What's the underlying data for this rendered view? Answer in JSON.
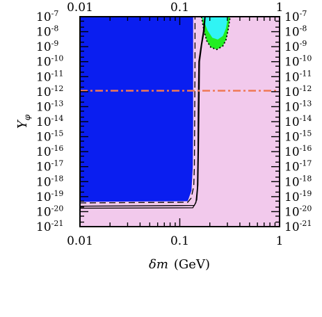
{
  "chart_data": {
    "type": "area",
    "title": "",
    "xlabel": {
      "symbol": "δm",
      "unit": "(GeV)"
    },
    "ylabel": {
      "symbol": "Y",
      "subscript": "φ"
    },
    "x_scale": "log",
    "y_scale": "log",
    "xlim": [
      0.01,
      1
    ],
    "ylim": [
      1e-21,
      1e-07
    ],
    "x_ticks": [
      {
        "value": 0.01,
        "label": "0.01"
      },
      {
        "value": 0.1,
        "label": "0.1"
      },
      {
        "value": 1,
        "label": "1"
      }
    ],
    "y_ticks": [
      {
        "exp": -7,
        "base": "10",
        "power": "-7"
      },
      {
        "exp": -8,
        "base": "10",
        "power": "-8"
      },
      {
        "exp": -9,
        "base": "10",
        "power": "-9"
      },
      {
        "exp": -10,
        "base": "10",
        "power": "-10"
      },
      {
        "exp": -11,
        "base": "10",
        "power": "-11"
      },
      {
        "exp": -12,
        "base": "10",
        "power": "-12"
      },
      {
        "exp": -13,
        "base": "10",
        "power": "-13"
      },
      {
        "exp": -14,
        "base": "10",
        "power": "-14"
      },
      {
        "exp": -15,
        "base": "10",
        "power": "-15"
      },
      {
        "exp": -16,
        "base": "10",
        "power": "-16"
      },
      {
        "exp": -17,
        "base": "10",
        "power": "-17"
      },
      {
        "exp": -18,
        "base": "10",
        "power": "-18"
      },
      {
        "exp": -19,
        "base": "10",
        "power": "-19"
      },
      {
        "exp": -20,
        "base": "10",
        "power": "-20"
      },
      {
        "exp": -21,
        "base": "10",
        "power": "-21"
      }
    ],
    "background_region": {
      "color": "#f2c9ec"
    },
    "regions": [
      {
        "color": "#0a1ef0",
        "points": [
          [
            0.01,
            1e-07
          ],
          [
            0.136,
            1e-07
          ],
          [
            0.136,
            1e-08
          ],
          [
            0.136,
            1e-14
          ],
          [
            0.135,
            1e-17
          ],
          [
            0.131,
            2.5e-19
          ],
          [
            0.12,
            5e-20
          ],
          [
            0.01,
            4.5e-20
          ]
        ]
      },
      {
        "color": "#22ee22",
        "points": [
          [
            0.165,
            1e-07
          ],
          [
            0.32,
            1e-07
          ],
          [
            0.305,
            1.3e-08
          ],
          [
            0.29,
            2.8e-09
          ],
          [
            0.27,
            1.1e-09
          ],
          [
            0.235,
            6.5e-10
          ],
          [
            0.205,
            9e-10
          ],
          [
            0.186,
            2.5e-09
          ],
          [
            0.175,
            1.1e-08
          ]
        ]
      },
      {
        "color": "#30f4f4",
        "points": [
          [
            0.168,
            1e-07
          ],
          [
            0.305,
            1e-07
          ],
          [
            0.29,
            1.7e-08
          ],
          [
            0.27,
            5.2e-09
          ],
          [
            0.24,
            3e-09
          ],
          [
            0.212,
            4e-09
          ],
          [
            0.19,
            1.2e-08
          ]
        ]
      }
    ],
    "curves": [
      {
        "style": "dashed",
        "color": "#000000",
        "points": [
          [
            0.01,
            3.8e-20
          ],
          [
            0.12,
            4.2e-20
          ],
          [
            0.13,
            8e-20
          ],
          [
            0.138,
            5e-19
          ],
          [
            0.14,
            1e-17
          ],
          [
            0.141,
            1e-14
          ],
          [
            0.142,
            1e-10
          ],
          [
            0.142,
            1e-07
          ]
        ]
      },
      {
        "style": "solid",
        "color": "#000000",
        "points": [
          [
            0.01,
            1.7e-20
          ],
          [
            0.135,
            1.8e-20
          ],
          [
            0.145,
            4e-20
          ],
          [
            0.15,
            4e-19
          ],
          [
            0.152,
            1e-16
          ],
          [
            0.153,
            1e-13
          ],
          [
            0.155,
            1e-10
          ],
          [
            0.163,
            1e-09
          ],
          [
            0.172,
            1e-08
          ],
          [
            0.178,
            1e-07
          ]
        ]
      },
      {
        "style": "solid",
        "color": "#000000",
        "points": [
          [
            0.01,
            2.3e-20
          ],
          [
            0.14,
            2.6e-20
          ],
          [
            0.148,
            6e-20
          ],
          [
            0.152,
            6e-19
          ],
          [
            0.154,
            1e-16
          ],
          [
            0.156,
            1e-13
          ],
          [
            0.158,
            1e-10
          ],
          [
            0.166,
            1.3e-09
          ],
          [
            0.176,
            1.2e-08
          ],
          [
            0.18,
            1e-07
          ]
        ]
      },
      {
        "style": "dotted",
        "color": "#000000",
        "points": [
          [
            0.165,
            1e-07
          ],
          [
            0.175,
            1.1e-08
          ],
          [
            0.186,
            2.5e-09
          ],
          [
            0.205,
            9e-10
          ],
          [
            0.235,
            6.5e-10
          ],
          [
            0.27,
            1.1e-09
          ],
          [
            0.29,
            2.8e-09
          ],
          [
            0.305,
            1.3e-08
          ],
          [
            0.32,
            1e-07
          ]
        ]
      },
      {
        "style": "dashdot",
        "color": "#f07855",
        "points": [
          [
            0.01,
            1.15e-12
          ],
          [
            1,
            1.15e-12
          ]
        ]
      }
    ]
  }
}
